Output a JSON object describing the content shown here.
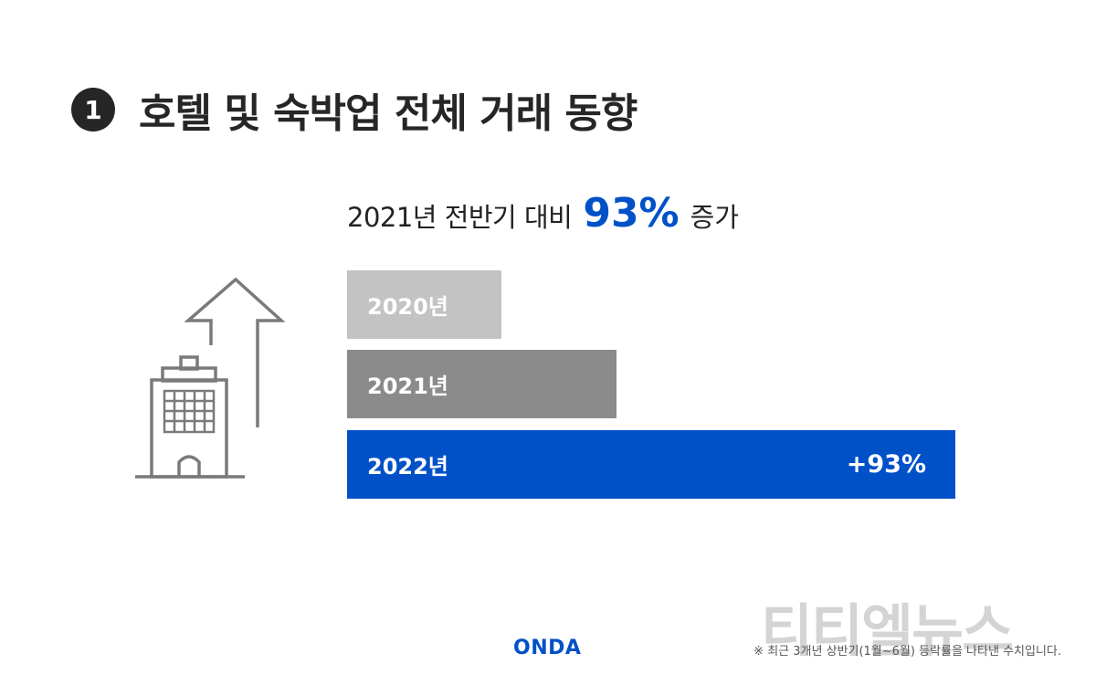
{
  "header": {
    "number": "1",
    "title": "호텔 및 숙박업 전체 거래 동향"
  },
  "subtitle": {
    "prefix": "2021년 전반기 대비",
    "highlight": "93%",
    "suffix": "증가"
  },
  "chart_data": {
    "type": "bar",
    "orientation": "horizontal",
    "categories": [
      "2020년",
      "2021년",
      "2022년"
    ],
    "values": [
      169,
      295,
      666
    ],
    "data_labels": [
      "",
      "",
      "+93%"
    ],
    "colors": [
      "#c3c3c3",
      "#8b8b8b",
      "#0051c8"
    ]
  },
  "icons": {
    "building": "building-with-up-arrow-icon"
  },
  "footer": {
    "logo": "ONDA",
    "note": "※ 최근 3개년 상반기(1월~6월) 등락률을 나타낸 수치입니다.",
    "watermark": "티티엘뉴스"
  },
  "colors": {
    "accent": "#0051c8",
    "dark": "#262626"
  }
}
